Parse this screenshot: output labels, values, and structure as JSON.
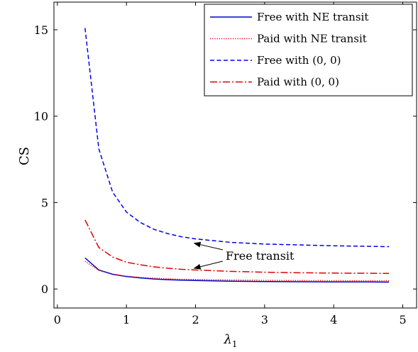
{
  "chart_data": {
    "type": "line",
    "xlabel": "λ1",
    "xlabel_main": "λ",
    "xlabel_sub": "1",
    "ylabel": "CS",
    "xlim": [
      -0.05,
      5.2
    ],
    "ylim": [
      -1.1,
      16.6
    ],
    "xticks": [
      0,
      1,
      2,
      3,
      4,
      5
    ],
    "yticks": [
      0,
      5,
      10,
      15
    ],
    "grid": false,
    "legend_position": "top-right",
    "series": [
      {
        "name": "Free with NE transit",
        "color": "#0000cc",
        "style": "solid",
        "x": [
          0.4,
          0.6,
          0.8,
          1.0,
          1.2,
          1.4,
          1.6,
          1.8,
          2.0,
          2.5,
          3.0,
          3.5,
          4.0,
          4.5,
          4.8
        ],
        "y": [
          1.8,
          1.1,
          0.85,
          0.72,
          0.64,
          0.58,
          0.54,
          0.51,
          0.49,
          0.45,
          0.43,
          0.42,
          0.41,
          0.41,
          0.4
        ]
      },
      {
        "name": "Paid with NE transit",
        "color": "#e00000",
        "style": "dotted",
        "x": [
          0.4,
          0.6,
          0.8,
          1.0,
          1.2,
          1.4,
          1.6,
          1.8,
          2.0,
          2.5,
          3.0,
          3.5,
          4.0,
          4.5,
          4.8
        ],
        "y": [
          1.6,
          1.08,
          0.86,
          0.74,
          0.67,
          0.62,
          0.59,
          0.56,
          0.55,
          0.52,
          0.5,
          0.49,
          0.48,
          0.48,
          0.47
        ]
      },
      {
        "name": "Free with (0, 0)",
        "color": "#0000ee",
        "style": "dashed",
        "x": [
          0.4,
          0.6,
          0.8,
          1.0,
          1.2,
          1.4,
          1.6,
          1.8,
          2.0,
          2.5,
          3.0,
          3.5,
          4.0,
          4.5,
          4.8
        ],
        "y": [
          15.1,
          8.1,
          5.6,
          4.45,
          3.85,
          3.45,
          3.2,
          3.02,
          2.9,
          2.7,
          2.6,
          2.55,
          2.5,
          2.47,
          2.45
        ]
      },
      {
        "name": "Paid with (0, 0)",
        "color": "#e00000",
        "style": "dashdot",
        "x": [
          0.4,
          0.6,
          0.8,
          1.0,
          1.2,
          1.4,
          1.6,
          1.8,
          2.0,
          2.5,
          3.0,
          3.5,
          4.0,
          4.5,
          4.8
        ],
        "y": [
          4.0,
          2.4,
          1.85,
          1.55,
          1.4,
          1.28,
          1.2,
          1.14,
          1.1,
          1.02,
          0.97,
          0.94,
          0.92,
          0.91,
          0.9
        ]
      }
    ],
    "annotations": [
      {
        "text": "Free transit",
        "arrow_targets": [
          [
            1.98,
            2.65
          ],
          [
            1.98,
            1.2
          ]
        ]
      }
    ]
  }
}
